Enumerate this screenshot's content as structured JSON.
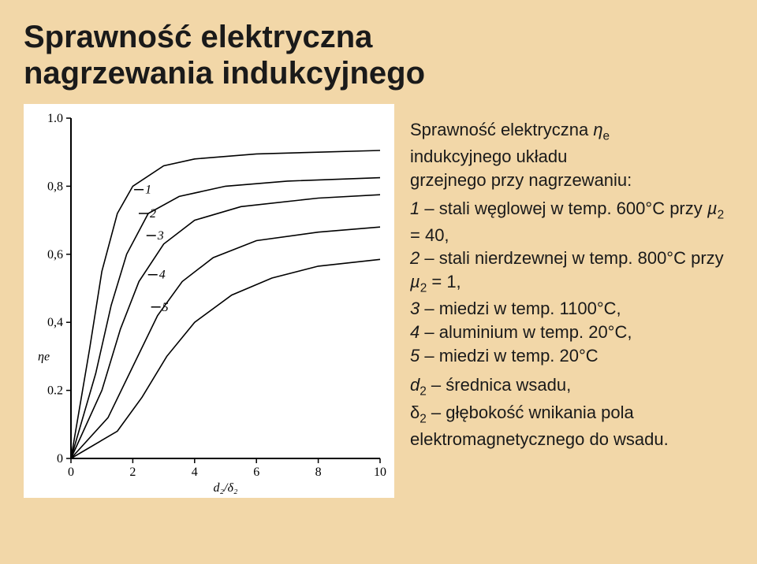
{
  "title_line1": "Sprawność elektryczna",
  "title_line2": "nagrzewania indukcyjnego",
  "description": {
    "intro_l1": "Sprawność elektryczna ",
    "intro_eta": "η",
    "intro_eta_sub": "e",
    "intro_l2": "indukcyjnego układu",
    "intro_l3": "grzejnego przy nagrzewaniu:",
    "item1_a": "1",
    "item1_b": " – stali węglowej w temp. 600°C przy ",
    "item1_mu": "µ",
    "item1_sub": "2",
    "item1_c": " = 40,",
    "item2_a": "2",
    "item2_b": " – stali nierdzewnej w temp. 800°C przy ",
    "item2_mu": "µ",
    "item2_sub": "2",
    "item2_c": " = 1,",
    "item3_a": "3",
    "item3_b": " – miedzi w temp. 1100°C,",
    "item4_a": "4",
    "item4_b": " – aluminium w temp. 20°C,",
    "item5_a": "5",
    "item5_b": " – miedzi w temp. 20°C",
    "foot_d": "d",
    "foot_d_sub": "2",
    "foot_d_rest": " – średnica wsadu,",
    "foot_delta": "δ",
    "foot_delta_sub": "2",
    "foot_delta_rest": " – głębokość wnikania pola elektromagnetycznego do wsadu."
  },
  "chart": {
    "type": "line",
    "background_color": "#ffffff",
    "stroke_color": "#000000",
    "xlim": [
      0,
      10
    ],
    "ylim": [
      0,
      1.0
    ],
    "xtick_step": 2,
    "ytick_step": 0.2,
    "x_ticks": [
      "0",
      "2",
      "4",
      "6",
      "8",
      "10"
    ],
    "y_ticks": [
      "0",
      "0.2",
      "0,4",
      "0,6",
      "0,8",
      "1.0"
    ],
    "y_label": "ηe",
    "x_label": "d₂/δ₂",
    "series_labels": [
      "1",
      "2",
      "3",
      "4",
      "5"
    ],
    "label_positions_x": [
      2.4,
      2.55,
      2.8,
      2.85,
      2.95
    ],
    "label_positions_y": [
      0.79,
      0.72,
      0.655,
      0.54,
      0.445
    ],
    "series": [
      {
        "name": "1",
        "points": [
          [
            0,
            0
          ],
          [
            0.6,
            0.32
          ],
          [
            1.0,
            0.55
          ],
          [
            1.5,
            0.72
          ],
          [
            2.0,
            0.8
          ],
          [
            3.0,
            0.86
          ],
          [
            4.0,
            0.88
          ],
          [
            6,
            0.895
          ],
          [
            8,
            0.9
          ],
          [
            10,
            0.905
          ]
        ]
      },
      {
        "name": "2",
        "points": [
          [
            0,
            0
          ],
          [
            0.8,
            0.25
          ],
          [
            1.3,
            0.45
          ],
          [
            1.8,
            0.6
          ],
          [
            2.5,
            0.72
          ],
          [
            3.5,
            0.77
          ],
          [
            5,
            0.8
          ],
          [
            7,
            0.815
          ],
          [
            10,
            0.825
          ]
        ]
      },
      {
        "name": "3",
        "points": [
          [
            0,
            0
          ],
          [
            1.0,
            0.2
          ],
          [
            1.6,
            0.38
          ],
          [
            2.2,
            0.52
          ],
          [
            3.0,
            0.63
          ],
          [
            4.0,
            0.7
          ],
          [
            5.5,
            0.74
          ],
          [
            8,
            0.765
          ],
          [
            10,
            0.775
          ]
        ]
      },
      {
        "name": "4",
        "points": [
          [
            0,
            0
          ],
          [
            1.2,
            0.12
          ],
          [
            2.0,
            0.27
          ],
          [
            2.8,
            0.42
          ],
          [
            3.6,
            0.52
          ],
          [
            4.6,
            0.59
          ],
          [
            6,
            0.64
          ],
          [
            8,
            0.665
          ],
          [
            10,
            0.68
          ]
        ]
      },
      {
        "name": "5",
        "points": [
          [
            0,
            0
          ],
          [
            1.5,
            0.08
          ],
          [
            2.3,
            0.18
          ],
          [
            3.1,
            0.3
          ],
          [
            4.0,
            0.4
          ],
          [
            5.2,
            0.48
          ],
          [
            6.5,
            0.53
          ],
          [
            8,
            0.565
          ],
          [
            10,
            0.585
          ]
        ]
      }
    ],
    "line_width": 1.6,
    "axis_fontsize": 16,
    "label_fontsize": 16
  }
}
